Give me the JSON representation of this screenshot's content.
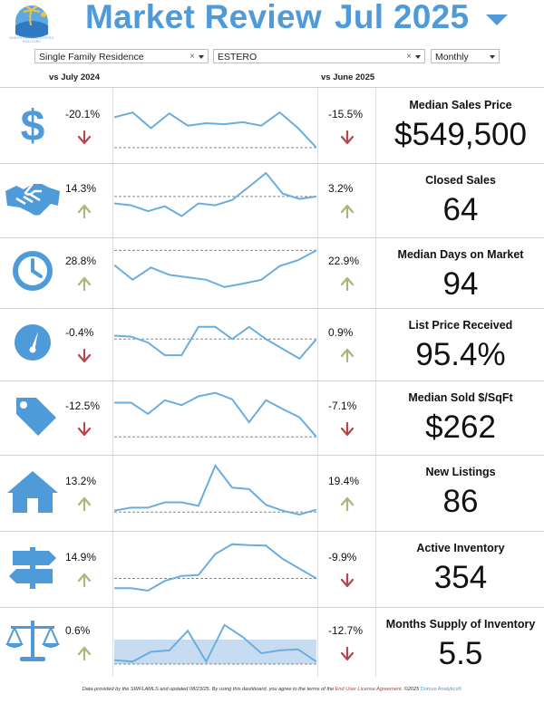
{
  "header": {
    "title": "Market Review",
    "period": "Jul 2025",
    "logo_caption": "BONITA SPRINGS-ESTERO REALTORS"
  },
  "filters": {
    "property_type": "Single Family Residence",
    "area": "ESTERO",
    "interval": "Monthly"
  },
  "columns": {
    "vs_year": "vs July 2024",
    "vs_month": "vs June 2025"
  },
  "colors": {
    "accent": "#4f9ad8",
    "up_arrow": "#a8b77a",
    "down_arrow": "#b9464f",
    "sparkline": "#6aaedf"
  },
  "rows": [
    {
      "icon": "dollar-icon",
      "vs_year": "-20.1%",
      "year_dir": "down",
      "vs_month": "-15.5%",
      "month_dir": "down",
      "label": "Median Sales Price",
      "value": "$549,500",
      "spark": [
        0.62,
        0.72,
        0.4,
        0.7,
        0.45,
        0.5,
        0.48,
        0.52,
        0.45,
        0.72,
        0.4,
        0.0
      ],
      "baseline": 0.0
    },
    {
      "icon": "handshake-icon",
      "vs_year": "14.3%",
      "year_dir": "up",
      "vs_month": "3.2%",
      "month_dir": "up",
      "label": "Closed Sales",
      "value": "64",
      "spark": [
        0.38,
        0.34,
        0.22,
        0.32,
        0.12,
        0.38,
        0.34,
        0.45,
        0.72,
        1.0,
        0.58,
        0.47,
        0.52
      ],
      "baseline": 0.52
    },
    {
      "icon": "clock-icon",
      "vs_year": "28.8%",
      "year_dir": "up",
      "vs_month": "22.9%",
      "month_dir": "up",
      "label": "Median Days on Market",
      "value": "94",
      "spark": [
        0.6,
        0.3,
        0.55,
        0.4,
        0.35,
        0.3,
        0.15,
        0.22,
        0.3,
        0.58,
        0.7,
        0.9
      ],
      "baseline": 0.9
    },
    {
      "icon": "gauge-icon",
      "vs_year": "-0.4%",
      "year_dir": "down",
      "vs_month": "0.9%",
      "month_dir": "up",
      "label": "List Price Received",
      "value": "95.4%",
      "spark": [
        0.62,
        0.6,
        0.48,
        0.22,
        0.22,
        0.8,
        0.8,
        0.55,
        0.8,
        0.55,
        0.35,
        0.15,
        0.55
      ],
      "baseline": 0.55
    },
    {
      "icon": "price-tag-icon",
      "vs_year": "-12.5%",
      "year_dir": "down",
      "vs_month": "-7.1%",
      "month_dir": "down",
      "label": "Median Sold $/SqFt",
      "value": "$262",
      "spark": [
        0.75,
        0.75,
        0.52,
        0.8,
        0.7,
        0.88,
        0.95,
        0.82,
        0.35,
        0.8,
        0.62,
        0.45,
        0.05
      ],
      "baseline": 0.05
    },
    {
      "icon": "house-icon",
      "vs_year": "13.2%",
      "year_dir": "up",
      "vs_month": "19.4%",
      "month_dir": "up",
      "label": "New Listings",
      "value": "86",
      "spark": [
        0.08,
        0.14,
        0.14,
        0.25,
        0.25,
        0.18,
        1.0,
        0.55,
        0.52,
        0.2,
        0.08,
        0.0,
        0.1
      ],
      "baseline": 0.05
    },
    {
      "icon": "signpost-icon",
      "vs_year": "14.9%",
      "year_dir": "up",
      "vs_month": "-9.9%",
      "month_dir": "down",
      "label": "Active Inventory",
      "value": "354",
      "spark": [
        0.05,
        0.05,
        0.0,
        0.2,
        0.3,
        0.32,
        0.75,
        0.95,
        0.93,
        0.92,
        0.65,
        0.45,
        0.25
      ],
      "baseline": 0.25
    },
    {
      "icon": "scales-icon",
      "vs_year": "0.6%",
      "year_dir": "up",
      "vs_month": "-12.7%",
      "month_dir": "down",
      "label": "Months Supply of Inventory",
      "value": "5.5",
      "spark": [
        0.08,
        0.05,
        0.25,
        0.28,
        0.68,
        0.05,
        0.8,
        0.55,
        0.22,
        0.28,
        0.3,
        0.05
      ],
      "baseline": 0.0,
      "band": [
        0.0,
        0.5
      ]
    }
  ],
  "footer": {
    "text": "Data provided by the SWFLAMLS and updated 08/23/25.  By using this dashboard, you agree to the terms of the ",
    "link": "End User License Agreement",
    "copyright": ".  ©2025 ",
    "brand": "Domus Analytics®"
  }
}
